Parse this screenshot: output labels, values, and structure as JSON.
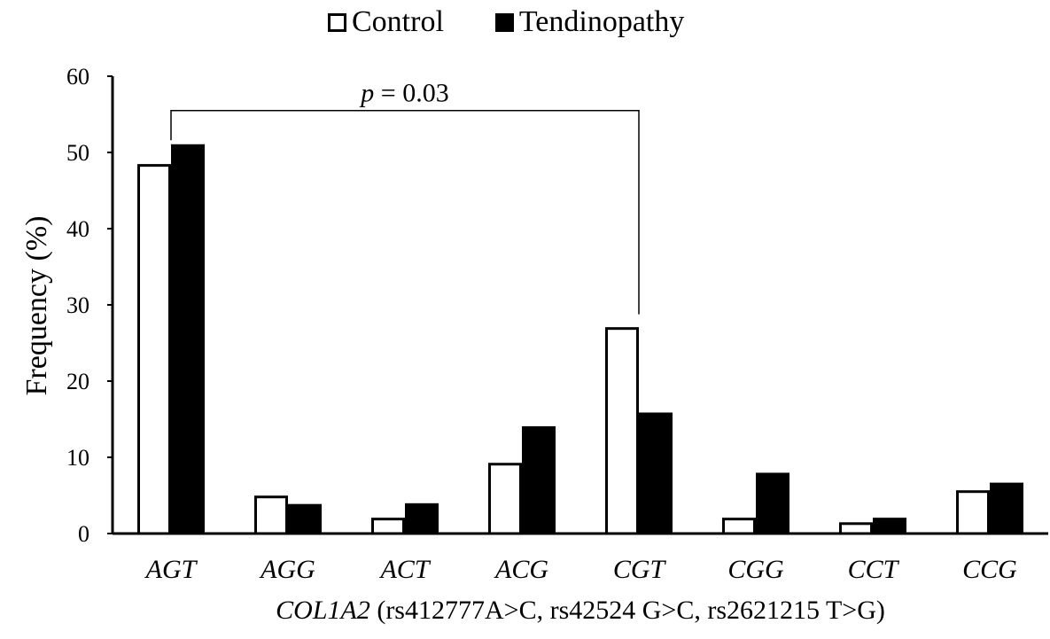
{
  "chart_data": {
    "type": "bar",
    "categories": [
      "AGT",
      "AGG",
      "ACT",
      "ACG",
      "CGT",
      "CGG",
      "CCT",
      "CCG"
    ],
    "series": [
      {
        "name": "Control",
        "values": [
          48.3,
          4.8,
          1.9,
          9.1,
          26.9,
          1.9,
          1.3,
          5.5
        ],
        "color": "#ffffff"
      },
      {
        "name": "Tendinopathy",
        "values": [
          50.9,
          3.7,
          3.8,
          13.9,
          15.7,
          7.8,
          1.9,
          6.5
        ],
        "color": "#000000"
      }
    ],
    "y_ticks": [
      "0",
      "10",
      "20",
      "30",
      "40",
      "50",
      "60"
    ],
    "ylim": [
      0,
      60
    ],
    "ylabel": "Frequency (%)",
    "xlabel_gene": "COL1A2",
    "xlabel_rest": " (rs412777A>C,  rs42524 G>C, rs2621215 T>G)",
    "annotation": {
      "text_italic": "p",
      "text_rest": " = 0.03",
      "from_category": "AGT",
      "to_category": "CGT",
      "bracket_level": 55.5
    },
    "legend_position": "top-center",
    "grid": false
  }
}
